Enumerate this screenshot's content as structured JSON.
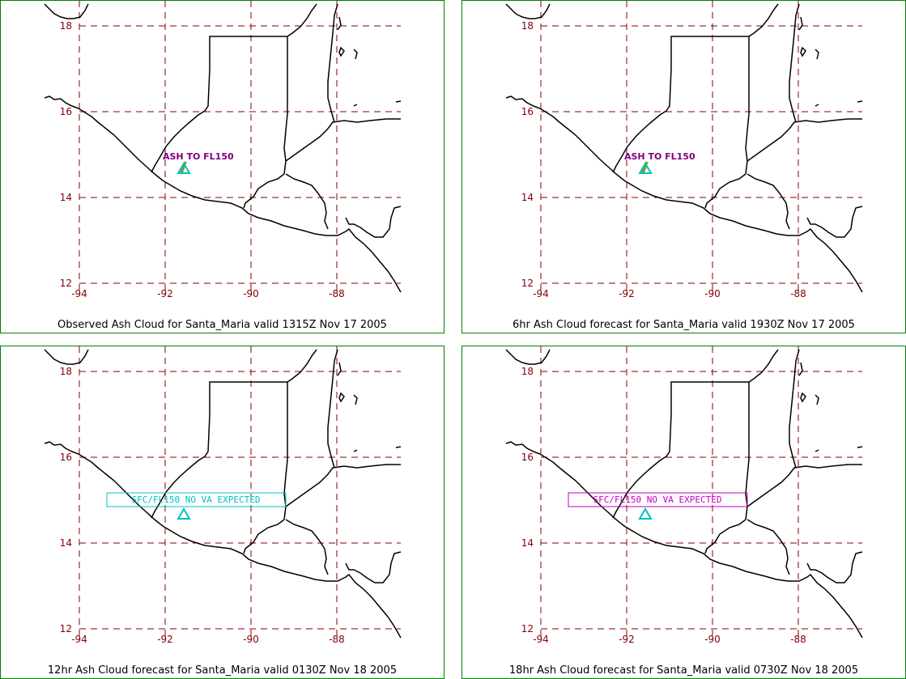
{
  "panels": [
    {
      "caption": "Observed Ash Cloud for Santa_Maria valid 1315Z Nov 17 2005",
      "annotation": {
        "text": "ASH TO FL150",
        "style": "label",
        "color": "#800080"
      },
      "show_ash_plume": true
    },
    {
      "caption": "6hr Ash Cloud forecast for Santa_Maria valid 1930Z Nov 17 2005",
      "annotation": {
        "text": "ASH TO FL150",
        "style": "label",
        "color": "#800080"
      },
      "show_ash_plume": true
    },
    {
      "caption": "12hr Ash Cloud forecast for Santa_Maria valid 0130Z Nov 18 2005",
      "annotation": {
        "text": "SFC/FL150 NO VA EXPECTED",
        "style": "box",
        "color": "#00c0c0"
      },
      "show_ash_plume": false
    },
    {
      "caption": "18hr Ash Cloud forecast for Santa_Maria valid 0730Z Nov 18 2005",
      "annotation": {
        "text": "SFC/FL150 NO VA EXPECTED",
        "style": "box",
        "color": "#c000c0"
      },
      "show_ash_plume": false
    }
  ],
  "grid": {
    "latitudes": [
      "18",
      "16",
      "14",
      "12"
    ],
    "longitudes": [
      "-94",
      "-92",
      "-90",
      "-88"
    ],
    "color": "#800000"
  },
  "volcano": {
    "name": "Santa_Maria",
    "marker_color": "#00c0c0"
  },
  "colors": {
    "frame": "#008000",
    "coast": "#000000"
  }
}
